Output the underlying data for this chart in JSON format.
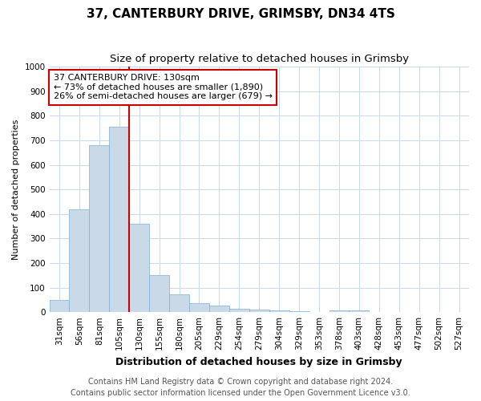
{
  "title": "37, CANTERBURY DRIVE, GRIMSBY, DN34 4TS",
  "subtitle": "Size of property relative to detached houses in Grimsby",
  "xlabel": "Distribution of detached houses by size in Grimsby",
  "ylabel": "Number of detached properties",
  "bar_labels": [
    "31sqm",
    "56sqm",
    "81sqm",
    "105sqm",
    "130sqm",
    "155sqm",
    "180sqm",
    "205sqm",
    "229sqm",
    "254sqm",
    "279sqm",
    "304sqm",
    "329sqm",
    "353sqm",
    "378sqm",
    "403sqm",
    "428sqm",
    "453sqm",
    "477sqm",
    "502sqm",
    "527sqm"
  ],
  "bar_values": [
    50,
    420,
    680,
    755,
    360,
    152,
    72,
    38,
    27,
    15,
    10,
    7,
    4,
    0,
    8,
    8,
    0,
    0,
    0,
    0,
    0
  ],
  "bar_color": "#c9d9e8",
  "bar_edge_color": "#7bafd4",
  "property_line_index": 4,
  "property_line_color": "#cc0000",
  "annotation_text": "37 CANTERBURY DRIVE: 130sqm\n← 73% of detached houses are smaller (1,890)\n26% of semi-detached houses are larger (679) →",
  "annotation_box_color": "#ffffff",
  "annotation_box_edge_color": "#cc0000",
  "ylim": [
    0,
    1000
  ],
  "yticks": [
    0,
    100,
    200,
    300,
    400,
    500,
    600,
    700,
    800,
    900,
    1000
  ],
  "footer1": "Contains HM Land Registry data © Crown copyright and database right 2024.",
  "footer2": "Contains public sector information licensed under the Open Government Licence v3.0.",
  "background_color": "#ffffff",
  "grid_color": "#c8d8e8",
  "title_fontsize": 11,
  "subtitle_fontsize": 9.5,
  "xlabel_fontsize": 9,
  "ylabel_fontsize": 8,
  "tick_fontsize": 7.5,
  "annotation_fontsize": 8,
  "footer_fontsize": 7
}
